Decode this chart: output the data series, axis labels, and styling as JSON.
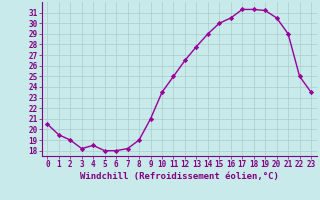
{
  "x": [
    0,
    1,
    2,
    3,
    4,
    5,
    6,
    7,
    8,
    9,
    10,
    11,
    12,
    13,
    14,
    15,
    16,
    17,
    18,
    19,
    20,
    21,
    22,
    23
  ],
  "y": [
    20.5,
    19.5,
    19.0,
    18.2,
    18.5,
    18.0,
    18.0,
    18.2,
    19.0,
    21.0,
    23.5,
    25.0,
    26.5,
    27.8,
    29.0,
    30.0,
    30.5,
    31.3,
    31.3,
    31.2,
    30.5,
    29.0,
    25.0,
    23.5
  ],
  "line_color": "#990099",
  "marker": "D",
  "marker_size": 2.2,
  "background_color": "#c8eaea",
  "grid_color": "#aacccc",
  "xlabel": "Windchill (Refroidissement éolien,°C)",
  "xlabel_color": "#800080",
  "tick_color": "#800080",
  "axis_color": "#800080",
  "ylim": [
    17.5,
    32.0
  ],
  "yticks": [
    18,
    19,
    20,
    21,
    22,
    23,
    24,
    25,
    26,
    27,
    28,
    29,
    30,
    31
  ],
  "xticks": [
    0,
    1,
    2,
    3,
    4,
    5,
    6,
    7,
    8,
    9,
    10,
    11,
    12,
    13,
    14,
    15,
    16,
    17,
    18,
    19,
    20,
    21,
    22,
    23
  ],
  "xlim": [
    -0.5,
    23.5
  ],
  "line_width": 1.0,
  "tick_fontsize": 5.5,
  "xlabel_fontsize": 6.5
}
